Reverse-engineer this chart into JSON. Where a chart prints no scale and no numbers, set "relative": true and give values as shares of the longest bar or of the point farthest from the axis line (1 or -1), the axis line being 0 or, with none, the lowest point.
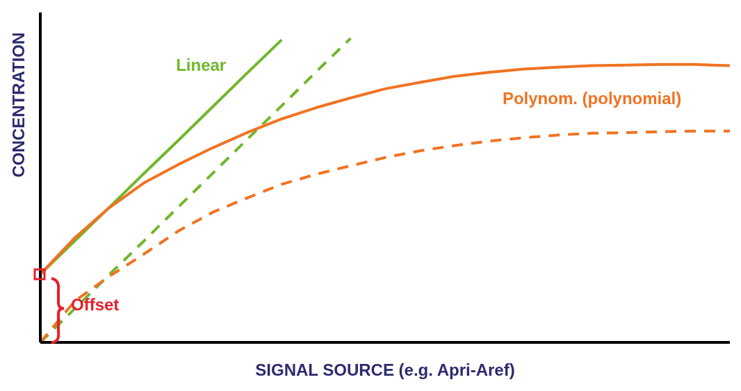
{
  "chart_data": {
    "type": "line",
    "relative": true,
    "xlabel": "SIGNAL SOURCE (e.g. Apri-Aref)",
    "ylabel": "CONCENTRATION",
    "categories": [
      null,
      null,
      null,
      null,
      null,
      null,
      null,
      null,
      null,
      null,
      null,
      null,
      null,
      null,
      null,
      null,
      null,
      null,
      null,
      null,
      null
    ],
    "series": [
      {
        "name": "Linear",
        "color": "#72b62c",
        "values": [
          0.224,
          0.334,
          0.444,
          0.555,
          0.664,
          0.775,
          0.886,
          0.995,
          null,
          null,
          null,
          null,
          null,
          null,
          null,
          null,
          null,
          null,
          null,
          null,
          null
        ]
      },
      {
        "color": "#72b62c",
        "line_style": "dashed",
        "values": [
          0,
          0.111,
          0.223,
          0.333,
          0.445,
          0.556,
          0.668,
          0.778,
          0.89,
          1,
          null,
          null,
          null,
          null,
          null,
          null,
          null,
          null,
          null,
          null,
          null
        ]
      },
      {
        "name": "Polynom. (polynomial)",
        "color": "#f07322",
        "values": [
          0.224,
          0.344,
          0.443,
          0.524,
          0.585,
          0.64,
          0.69,
          0.735,
          0.772,
          0.804,
          0.834,
          0.855,
          0.875,
          0.888,
          0.899,
          0.905,
          0.91,
          0.912,
          0.914,
          0.914,
          0.91
        ]
      },
      {
        "color": "#f07322",
        "line_style": "dashed",
        "values": [
          0,
          0.136,
          0.217,
          0.29,
          0.366,
          0.428,
          0.475,
          0.52,
          0.553,
          0.581,
          0.608,
          0.63,
          0.647,
          0.662,
          0.673,
          0.682,
          0.688,
          0.69,
          0.693,
          0.695,
          0.695
        ]
      }
    ],
    "annotations": [
      "Offset"
    ],
    "grid": false,
    "legend": false,
    "marker": "none",
    "line_style": "solid"
  }
}
